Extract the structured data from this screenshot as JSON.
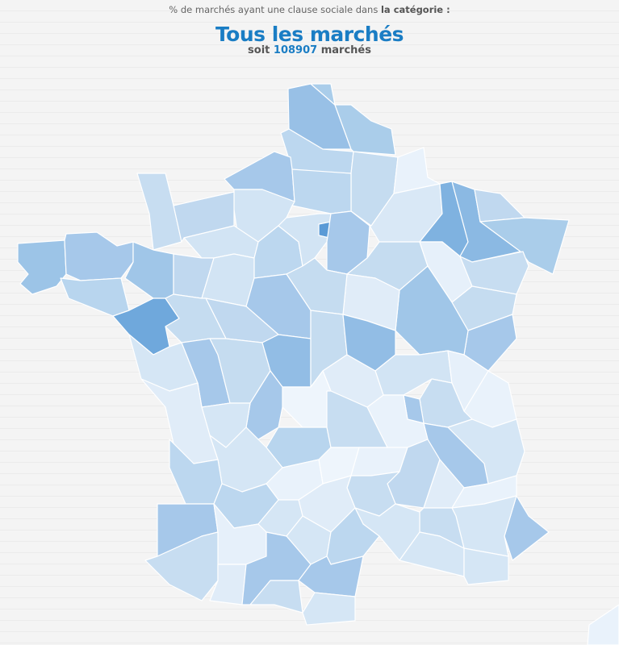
{
  "header": {
    "intro_text": "% de marchés ayant une clause sociale dans",
    "intro_bold": "la catégorie :",
    "category_title": "Tous les marchés",
    "count_prefix": "soit",
    "count_value": "108907",
    "count_suffix": "marchés"
  },
  "colors": {
    "accent": "#1a7dc4",
    "scale_light": "#eef5fc",
    "scale_dark": "#5a9ad6"
  }
}
